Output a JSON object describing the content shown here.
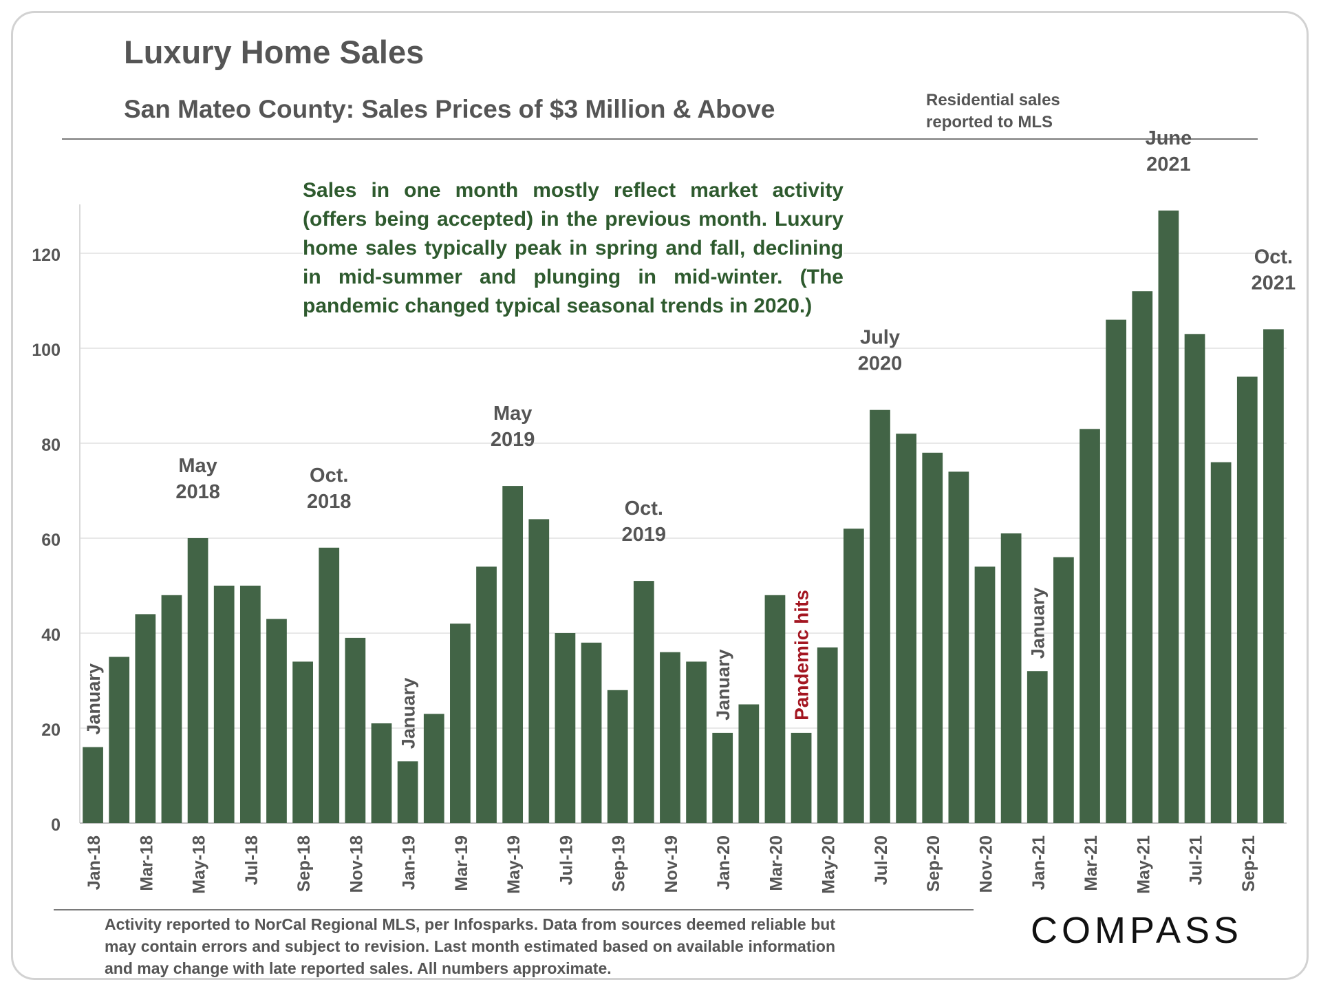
{
  "header": {
    "title": "Luxury Home Sales",
    "subtitle": "San Mateo County: Sales Prices of $3 Million & Above",
    "source_note": [
      "Residential sales",
      "reported to MLS"
    ]
  },
  "callout": "Sales in one month mostly reflect market activity (offers being accepted) in the previous month. Luxury home sales typically peak in spring and fall, declining in mid-summer and plunging in mid-winter. (The pandemic changed typical seasonal trends in 2020.)",
  "footnote": "Activity reported to NorCal Regional MLS, per Infosparks. Data from sources deemed reliable but may contain errors and subject to revision. Last month estimated based on available information and may change with late reported sales. All numbers approximate.",
  "logo": {
    "text": "COMPASS"
  },
  "colors": {
    "bar": "#426446",
    "axis_text": "#555555",
    "highlight": "#a31621",
    "callout_text": "#2e5a2e"
  },
  "chart_data": {
    "type": "bar",
    "title": "Luxury Home Sales",
    "subtitle": "San Mateo County: Sales Prices of $3 Million & Above",
    "xlabel": "",
    "ylabel": "",
    "ylim": [
      0,
      130
    ],
    "yticks": [
      0,
      20,
      40,
      60,
      80,
      100,
      120
    ],
    "grid": true,
    "categories": [
      "Jan-18",
      "Feb-18",
      "Mar-18",
      "Apr-18",
      "May-18",
      "Jun-18",
      "Jul-18",
      "Aug-18",
      "Sep-18",
      "Oct-18",
      "Nov-18",
      "Dec-18",
      "Jan-19",
      "Feb-19",
      "Mar-19",
      "Apr-19",
      "May-19",
      "Jun-19",
      "Jul-19",
      "Aug-19",
      "Sep-19",
      "Oct-19",
      "Nov-19",
      "Dec-19",
      "Jan-20",
      "Feb-20",
      "Mar-20",
      "Apr-20",
      "May-20",
      "Jun-20",
      "Jul-20",
      "Aug-20",
      "Sep-20",
      "Oct-20",
      "Nov-20",
      "Dec-20",
      "Jan-21",
      "Feb-21",
      "Mar-21",
      "Apr-21",
      "May-21",
      "Jun-21",
      "Jul-21",
      "Aug-21",
      "Sep-21",
      "Oct-21"
    ],
    "x_tick_labels": [
      "Jan-18",
      "Mar-18",
      "May-18",
      "Jul-18",
      "Sep-18",
      "Nov-18",
      "Jan-19",
      "Mar-19",
      "May-19",
      "Jul-19",
      "Sep-19",
      "Nov-19",
      "Jan-20",
      "Mar-20",
      "May-20",
      "Jul-20",
      "Sep-20",
      "Nov-20",
      "Jan-21",
      "Mar-21",
      "May-21",
      "Jul-21",
      "Sep-21"
    ],
    "values": [
      16,
      35,
      44,
      48,
      60,
      50,
      50,
      43,
      34,
      58,
      39,
      21,
      13,
      23,
      42,
      54,
      71,
      64,
      40,
      38,
      28,
      51,
      36,
      34,
      19,
      25,
      48,
      19,
      37,
      62,
      87,
      82,
      78,
      74,
      54,
      61,
      32,
      56,
      83,
      106,
      112,
      129,
      103,
      76,
      94,
      104
    ],
    "annotations": [
      {
        "month": "Jan-18",
        "text": "January",
        "style": "vertical"
      },
      {
        "month": "Jan-19",
        "text": "January",
        "style": "vertical"
      },
      {
        "month": "Jan-20",
        "text": "January",
        "style": "vertical"
      },
      {
        "month": "Jan-21",
        "text": "January",
        "style": "vertical"
      },
      {
        "month": "Apr-20",
        "text": "Pandemic hits",
        "style": "vertical-red"
      },
      {
        "month": "May-18",
        "lines": [
          "May",
          "2018"
        ],
        "style": "above"
      },
      {
        "month": "Oct-18",
        "lines": [
          "Oct.",
          "2018"
        ],
        "style": "above"
      },
      {
        "month": "May-19",
        "lines": [
          "May",
          "2019"
        ],
        "style": "above"
      },
      {
        "month": "Oct-19",
        "lines": [
          "Oct.",
          "2019"
        ],
        "style": "above"
      },
      {
        "month": "Jul-20",
        "lines": [
          "July",
          "2020"
        ],
        "style": "above"
      },
      {
        "month": "Jun-21",
        "lines": [
          "June",
          "2021"
        ],
        "style": "above"
      },
      {
        "month": "Oct-21",
        "lines": [
          "Oct.",
          "2021"
        ],
        "style": "above"
      }
    ]
  }
}
